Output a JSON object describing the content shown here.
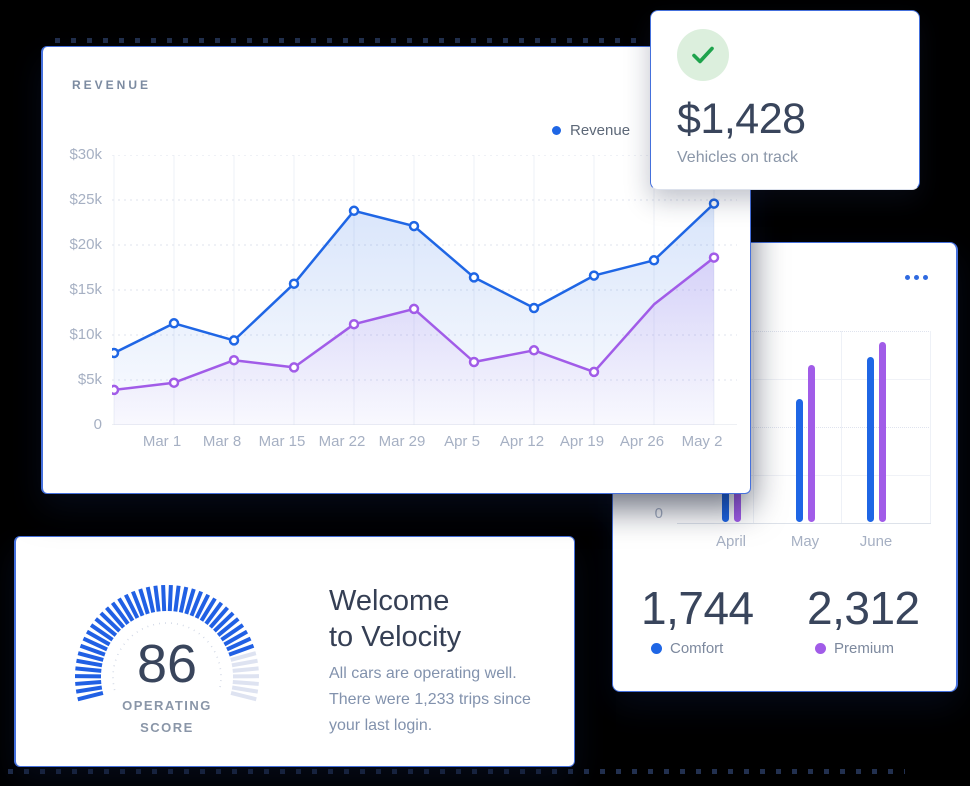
{
  "page": {
    "background": "#000000"
  },
  "revenue_card": {
    "title": "REVENUE",
    "legend": {
      "label": "Revenue",
      "color": "#1f66e5"
    }
  },
  "kpi_card": {
    "value": "$1,428",
    "label": "Vehicles on track",
    "icon": "check-circle",
    "icon_color": "#1ea34c",
    "icon_bg": "#dcefdd"
  },
  "bar_card": {
    "menu": "ellipsis",
    "y_zero_label": "0",
    "stats": [
      {
        "value": "1,744",
        "label": "Comfort",
        "color": "#1f66e5"
      },
      {
        "value": "2,312",
        "label": "Premium",
        "color": "#a15ce8"
      }
    ]
  },
  "welcome_card": {
    "score": "86",
    "score_label": "OPERATING\nSCORE",
    "title": "Welcome\nto Velocity",
    "body": "All cars are operating well.\nThere were 1,233 trips since\nyour last login."
  },
  "chart_data": [
    {
      "type": "line",
      "title": "REVENUE",
      "x": [
        "",
        "Mar 1",
        "Mar 8",
        "Mar 15",
        "Mar 22",
        "Mar 29",
        "Apr 5",
        "Apr 12",
        "Apr 19",
        "Apr 26",
        "May 2"
      ],
      "series": [
        {
          "name": "Revenue",
          "color": "#1f66e5",
          "values": [
            8000,
            11300,
            9400,
            15700,
            23800,
            22100,
            16400,
            13000,
            16600,
            18300,
            24600
          ]
        },
        {
          "name": "",
          "color": "#a15ce8",
          "values": [
            3900,
            4700,
            7200,
            6400,
            11200,
            12900,
            7000,
            8300,
            5900,
            13400,
            18600
          ],
          "marker_skip": [
            9
          ]
        }
      ],
      "ylim": [
        0,
        30000
      ],
      "yticks": [
        "$30k",
        "$25k",
        "$20k",
        "$15k",
        "$10k",
        "$5k",
        "0"
      ],
      "legend_position": "top-right",
      "grid": true
    },
    {
      "type": "bar",
      "categories": [
        "April",
        "May",
        "June"
      ],
      "series": [
        {
          "name": "Comfort",
          "color": "#1f66e5",
          "values": [
            1600,
            1230,
            1650
          ]
        },
        {
          "name": "Premium",
          "color": "#a15ce8",
          "values": [
            1700,
            1570,
            1800
          ]
        }
      ],
      "ylim": [
        0,
        1920
      ],
      "grid": true,
      "legend_position": "bottom"
    },
    {
      "type": "gauge",
      "value": 86,
      "max": 100,
      "label": "OPERATING SCORE"
    }
  ]
}
